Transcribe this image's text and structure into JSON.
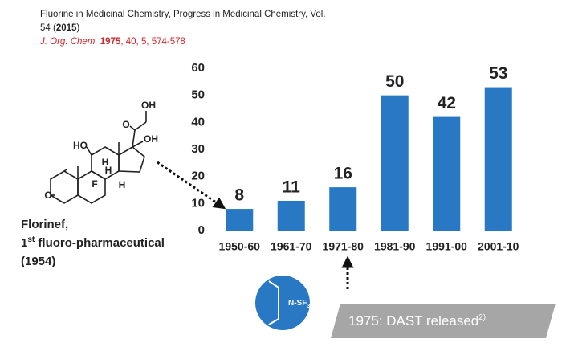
{
  "reference": {
    "source_line_1": "Fluorine in Medicinal Chemistry, Progress in Medicinal Chemistry, Vol.",
    "source_line_2_start": "54 (",
    "source_line_2_year": "2015",
    "source_line_2_end": ")",
    "journal": "J. Org. Chem.",
    "journal_year": "1975",
    "journal_rest": ", 40, 5, 574-578"
  },
  "molecule": {
    "labels": [
      "OH",
      "O",
      "OH",
      "HO",
      "H",
      "F",
      "H",
      "H",
      "O"
    ],
    "name": "Florinef,",
    "description_prefix": "1",
    "description_superscript": "st",
    "description_rest": " fluoro-pharmaceutical",
    "year": "(1954)"
  },
  "reagent": {
    "label": "N-SF",
    "subscript": "3"
  },
  "banner": {
    "text": "1975: DAST released",
    "superscript": "2)"
  },
  "chart_data": {
    "type": "bar",
    "categories": [
      "1950-60",
      "1961-70",
      "1971-80",
      "1981-90",
      "1991-00",
      "2001-10"
    ],
    "values": [
      8,
      11,
      16,
      50,
      42,
      53
    ],
    "color": "#2878c4",
    "ylim": [
      0,
      60
    ],
    "yticks": [
      0,
      10,
      20,
      30,
      40,
      50,
      60
    ],
    "grid": false
  }
}
